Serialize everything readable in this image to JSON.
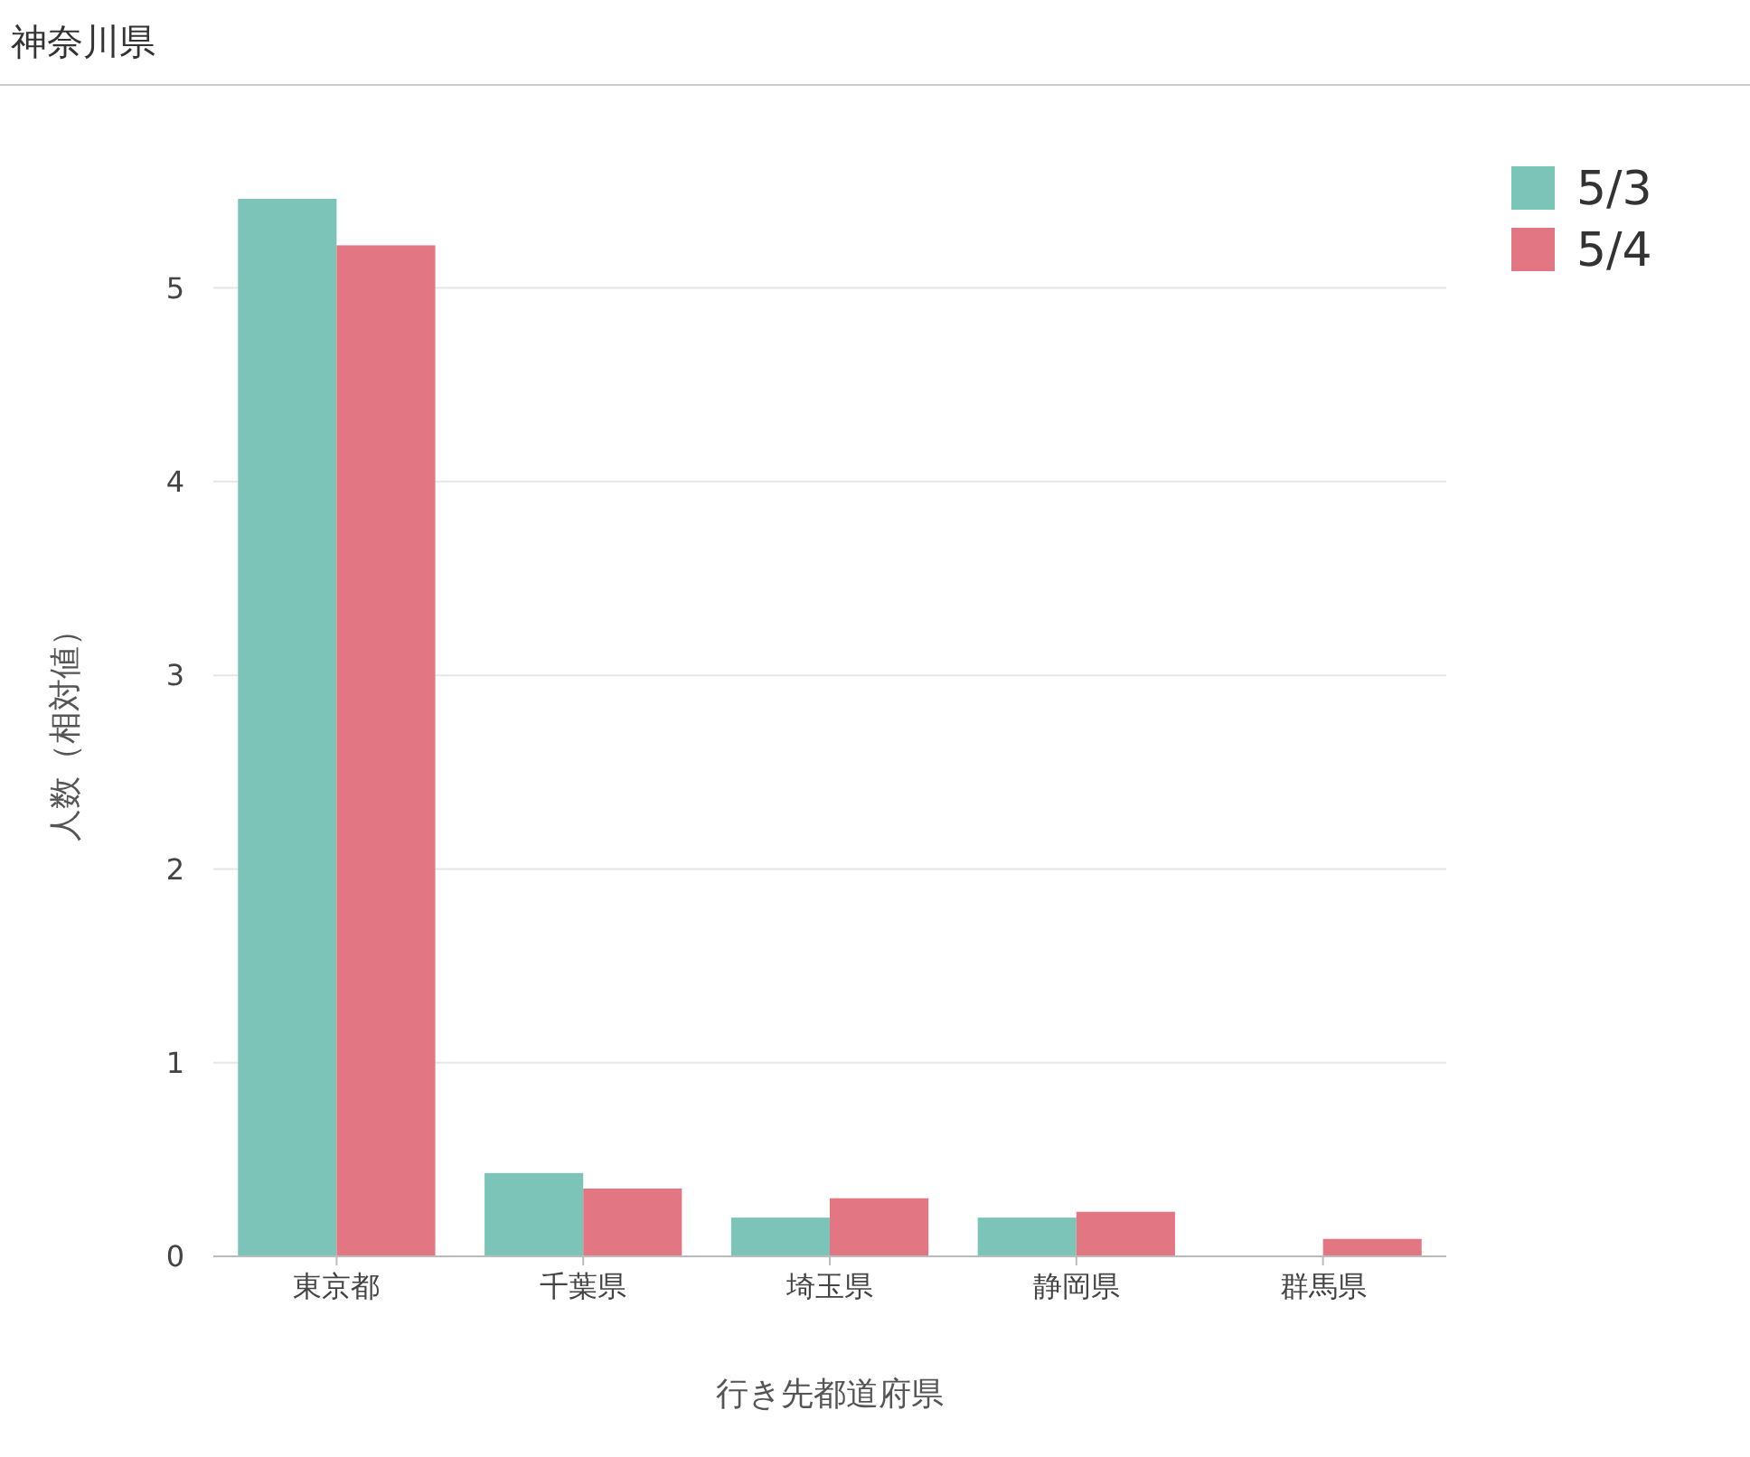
{
  "chart_data": {
    "type": "bar",
    "title": "神奈川県",
    "xlabel": "行き先都道府県",
    "ylabel": "人数（相対値）",
    "categories": [
      "東京都",
      "千葉県",
      "埼玉県",
      "静岡県",
      "群馬県"
    ],
    "series": [
      {
        "name": "5/3",
        "color": "#7dc4b8",
        "values": [
          5.46,
          0.43,
          0.2,
          0.2,
          0
        ]
      },
      {
        "name": "5/4",
        "color": "#e37683",
        "values": [
          5.22,
          0.35,
          0.3,
          0.23,
          0.09
        ]
      }
    ],
    "ylim": [
      0,
      5.46
    ],
    "yticks": [
      0,
      1,
      2,
      3,
      4,
      5
    ],
    "grid": "y",
    "legend": "top right"
  }
}
